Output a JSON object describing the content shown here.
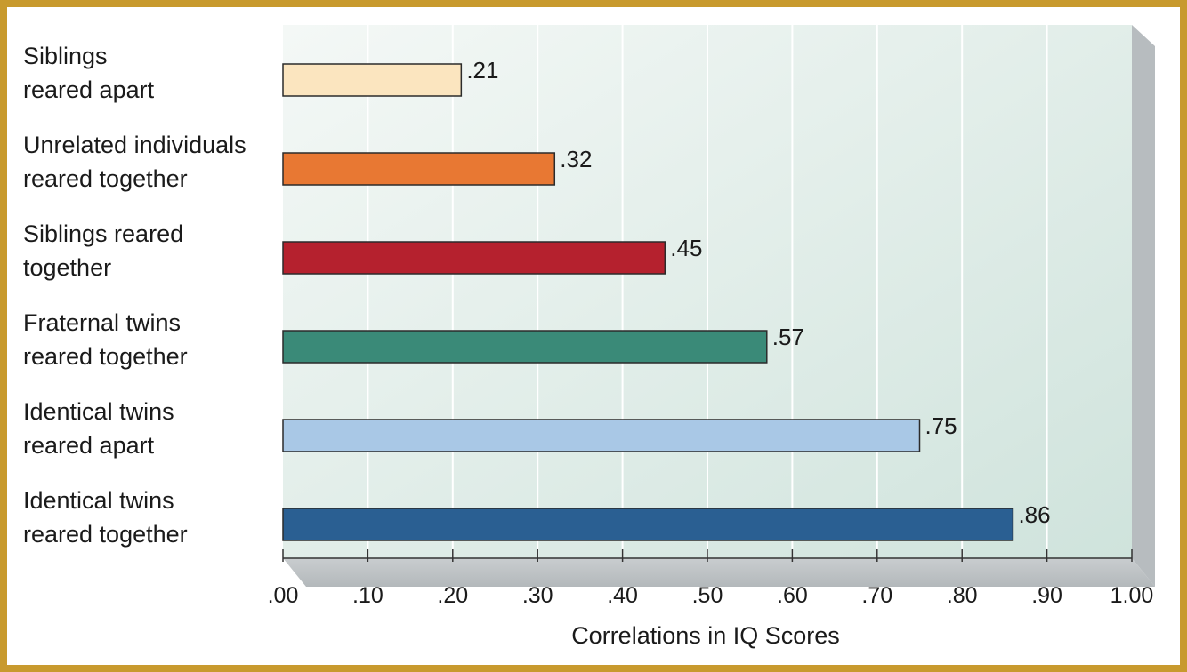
{
  "chart_data": {
    "type": "bar",
    "orientation": "horizontal",
    "categories": [
      "Siblings\nreared apart",
      "Unrelated individuals\nreared together",
      "Siblings reared\ntogether",
      "Fraternal twins\nreared together",
      "Identical twins\nreared apart",
      "Identical twins\nreared together"
    ],
    "values": [
      0.21,
      0.32,
      0.45,
      0.57,
      0.75,
      0.86
    ],
    "value_labels": [
      ".21",
      ".32",
      ".45",
      ".57",
      ".75",
      ".86"
    ],
    "colors": [
      "#fbe5bf",
      "#e87833",
      "#b5212e",
      "#3a8a78",
      "#a9c8e6",
      "#2a5f92"
    ],
    "xlim": [
      0,
      1
    ],
    "xticks": [
      0,
      0.1,
      0.2,
      0.3,
      0.4,
      0.5,
      0.6,
      0.7,
      0.8,
      0.9,
      1.0
    ],
    "xtick_labels": [
      ".00",
      ".10",
      ".20",
      ".30",
      ".40",
      ".50",
      ".60",
      ".70",
      ".80",
      ".90",
      "1.00"
    ],
    "xlabel": "Correlations in IQ Scores",
    "title": "",
    "grid": true
  }
}
